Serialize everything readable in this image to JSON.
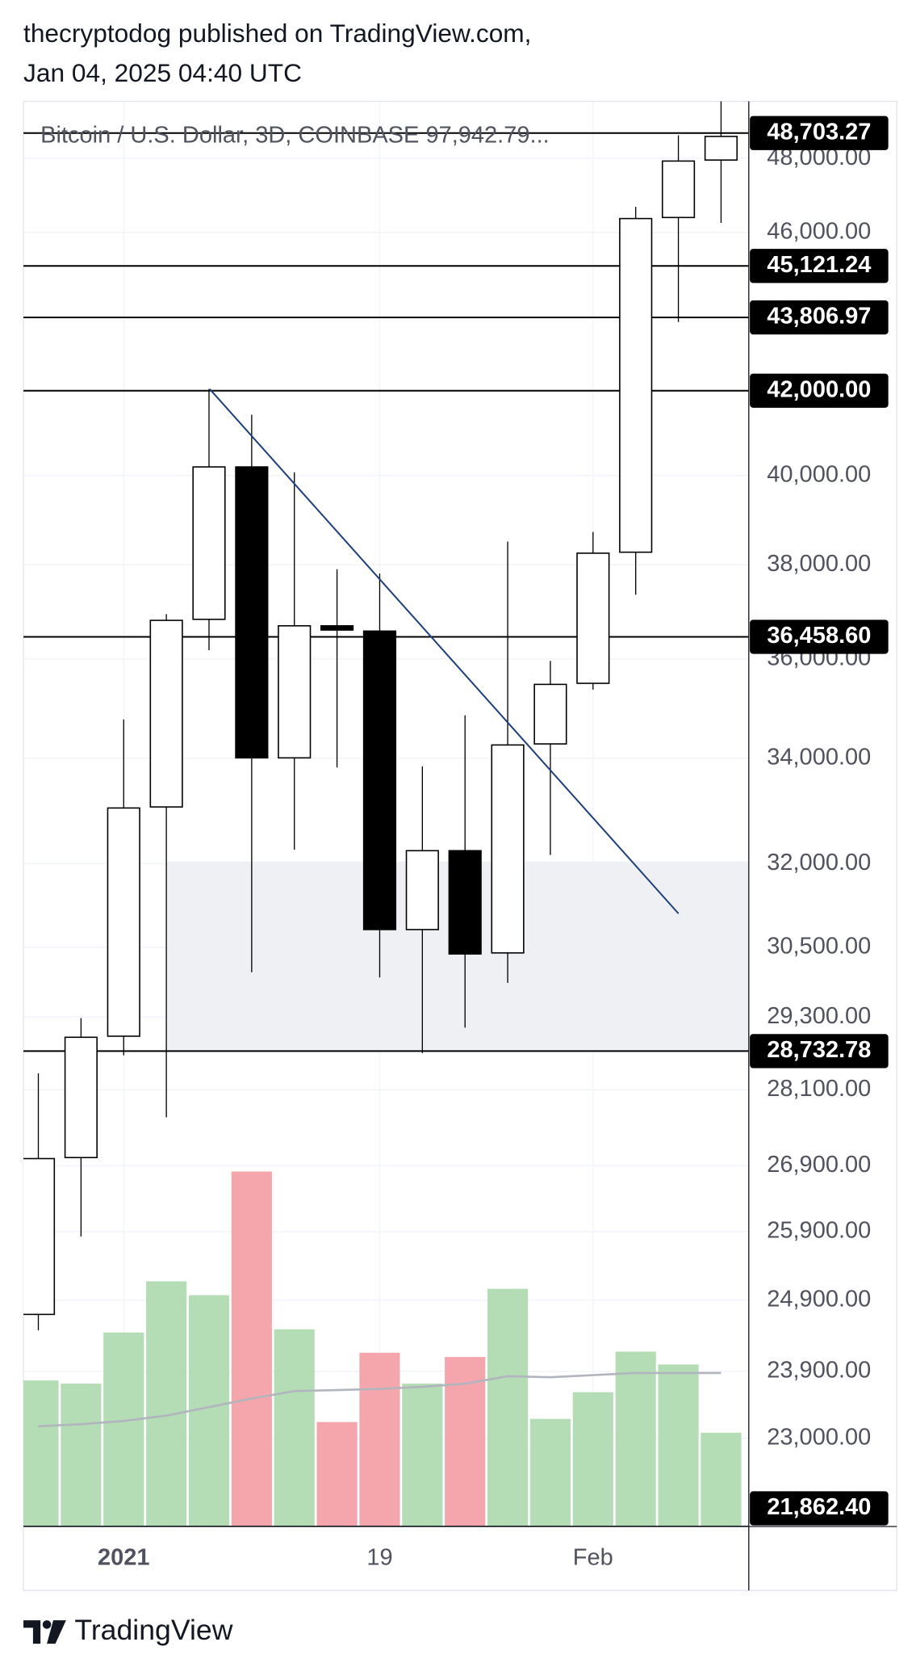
{
  "header": {
    "line1": "thecryptodog published on TradingView.com,",
    "line2": "Jan 04, 2025 04:40 UTC"
  },
  "footer": {
    "brand": "TradingView"
  },
  "chart_data": {
    "type": "candlestick",
    "legend": "Bitcoin / U.S. Dollar, 3D, COINBASE  97,942.79...",
    "categories": [
      null,
      null,
      "2021",
      null,
      null,
      null,
      null,
      null,
      "19",
      null,
      null,
      null,
      null,
      "Feb",
      null,
      null,
      null
    ],
    "open": [
      24697,
      27027,
      28980,
      33062,
      36827,
      40199,
      34008,
      36690,
      36579,
      30812,
      32241,
      30401,
      34282,
      35497,
      38276,
      46396,
      47954
    ],
    "high": [
      28368,
      29283,
      34767,
      36938,
      42040,
      41423,
      40075,
      37904,
      37809,
      33842,
      34850,
      38511,
      35958,
      38723,
      46681,
      48640,
      49600
    ],
    "low": [
      24472,
      25829,
      28663,
      27660,
      36180,
      30066,
      32260,
      33821,
      29974,
      28699,
      29123,
      29882,
      32163,
      35369,
      37352,
      43691,
      46253
    ],
    "close": [
      27011,
      28962,
      33042,
      36805,
      40199,
      34008,
      36690,
      36601,
      30812,
      32241,
      30383,
      34261,
      35475,
      38254,
      46368,
      47926,
      48610
    ],
    "volume": [
      137,
      134,
      182,
      230,
      217,
      333,
      185,
      98,
      163,
      134,
      159,
      223,
      101,
      126,
      164,
      152,
      88
    ],
    "volume_ma": [
      94,
      96,
      99,
      104,
      112,
      120,
      127,
      128,
      129,
      131,
      134,
      141,
      140,
      142,
      144,
      144,
      144
    ],
    "up_color": "#ffffff",
    "down_color": "#000000",
    "volume_up_color": "#b4dcb5",
    "volume_down_color": "#f4a6ac",
    "volume_ma_color": "#b2b5be",
    "trendline_color": "#1c3f7a",
    "zone": [
      28732.78,
      32040
    ],
    "log_scale": true,
    "grid": true,
    "ylim": [
      21862.4,
      49600
    ],
    "yticks": [
      {
        "value": 48000,
        "label": "48,000.00"
      },
      {
        "value": 46000,
        "label": "46,000.00"
      },
      {
        "value": 40000,
        "label": "40,000.00"
      },
      {
        "value": 38000,
        "label": "38,000.00"
      },
      {
        "value": 36000,
        "label": "36,000.00"
      },
      {
        "value": 34000,
        "label": "34,000.00"
      },
      {
        "value": 32000,
        "label": "32,000.00"
      },
      {
        "value": 30500,
        "label": "30,500.00"
      },
      {
        "value": 29300,
        "label": "29,300.00"
      },
      {
        "value": 28100,
        "label": "28,100.00"
      },
      {
        "value": 26900,
        "label": "26,900.00"
      },
      {
        "value": 25900,
        "label": "25,900.00"
      },
      {
        "value": 24900,
        "label": "24,900.00"
      },
      {
        "value": 23900,
        "label": "23,900.00"
      },
      {
        "value": 23000,
        "label": "23,000.00"
      }
    ],
    "levels": [
      {
        "value": 48703.27,
        "label": "48,703.27"
      },
      {
        "value": 45121.24,
        "label": "45,121.24"
      },
      {
        "value": 43806.97,
        "label": "43,806.97"
      },
      {
        "value": 42000,
        "label": "42,000.00"
      },
      {
        "value": 36458.6,
        "label": "36,458.60"
      },
      {
        "value": 28732.78,
        "label": "28,732.78"
      },
      {
        "value": 21862.4,
        "label": "21,862.40"
      }
    ]
  }
}
